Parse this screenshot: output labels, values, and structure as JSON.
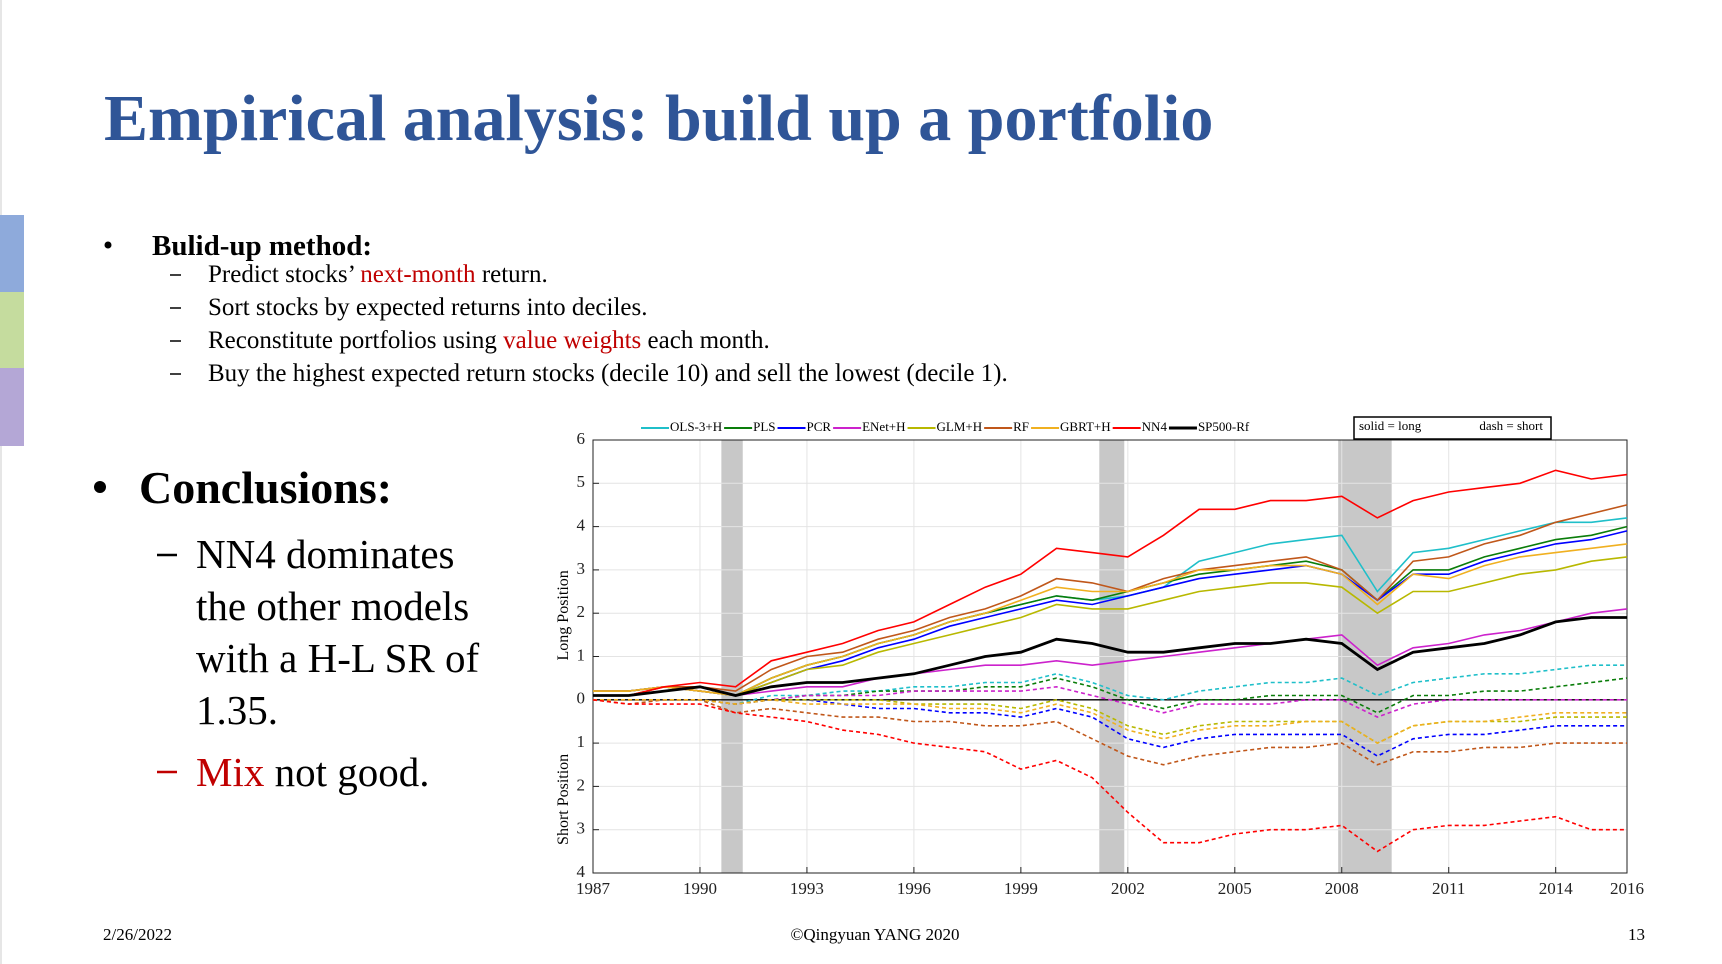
{
  "slide": {
    "title": "Empirical analysis: build up a portfolio",
    "method": {
      "heading": "Bulid-up method:",
      "items": [
        [
          {
            "text": "Predict stocks’ "
          },
          {
            "text": "next-month",
            "color": "#c00000"
          },
          {
            "text": " return."
          }
        ],
        [
          {
            "text": "Sort stocks by expected returns into deciles."
          }
        ],
        [
          {
            "text": "Reconstitute portfolios using "
          },
          {
            "text": "value weights",
            "color": "#c00000"
          },
          {
            "text": " each month."
          }
        ],
        [
          {
            "text": "Buy the highest expected return stocks (decile 10) and sell the lowest (decile 1)."
          }
        ]
      ]
    },
    "conclusions": {
      "heading": "Conclusions:",
      "lines": [
        "NN4 dominates",
        "the other models",
        "with a H-L SR of",
        "1.35."
      ],
      "mix": [
        {
          "text": "Mix",
          "color": "#c00000"
        },
        {
          "text": " not good."
        }
      ]
    },
    "footer": {
      "date": "2/26/2022",
      "credit": "©Qingyuan YANG 2020",
      "page": "13"
    }
  },
  "chart_data": {
    "type": "line",
    "ylabel_long": "Long Position",
    "ylabel_short": "Short Position",
    "legend_note": [
      "solid = long",
      "dash = short"
    ],
    "x": [
      1987,
      1988,
      1989,
      1990,
      1991,
      1992,
      1993,
      1994,
      1995,
      1996,
      1997,
      1998,
      1999,
      2000,
      2001,
      2002,
      2003,
      2004,
      2005,
      2006,
      2007,
      2008,
      2009,
      2010,
      2011,
      2012,
      2013,
      2014,
      2015,
      2016
    ],
    "xlim": [
      1987,
      2016
    ],
    "xticks": [
      1987,
      1990,
      1993,
      1996,
      1999,
      2002,
      2005,
      2008,
      2011,
      2014,
      2016
    ],
    "ylim": [
      -4,
      6
    ],
    "yticks": [
      {
        "value": -4,
        "label": "4"
      },
      {
        "value": -3,
        "label": "3"
      },
      {
        "value": -2,
        "label": "2"
      },
      {
        "value": -1,
        "label": "1"
      },
      0,
      1,
      2,
      3,
      4,
      5,
      6
    ],
    "grid": true,
    "shaded_periods": [
      [
        1990.6,
        1991.2
      ],
      [
        2001.2,
        2001.9
      ],
      [
        2007.9,
        2009.4
      ]
    ],
    "series": [
      {
        "name": "OLS-3+H",
        "color": "#1fbfc9",
        "long": [
          0.2,
          0.2,
          0.3,
          0.2,
          0.1,
          0.5,
          0.8,
          1.0,
          1.3,
          1.5,
          1.8,
          2.0,
          2.2,
          2.4,
          2.3,
          2.4,
          2.6,
          3.2,
          3.4,
          3.6,
          3.7,
          3.8,
          2.5,
          3.4,
          3.5,
          3.7,
          3.9,
          4.1,
          4.1,
          4.2
        ],
        "short": [
          0,
          0,
          0,
          0,
          -0.1,
          0.1,
          0.1,
          0.2,
          0.2,
          0.3,
          0.3,
          0.4,
          0.4,
          0.6,
          0.4,
          0.1,
          0,
          0.2,
          0.3,
          0.4,
          0.4,
          0.5,
          0.1,
          0.4,
          0.5,
          0.6,
          0.6,
          0.7,
          0.8,
          0.8
        ]
      },
      {
        "name": "PLS",
        "color": "#0a7d0a",
        "long": [
          0.2,
          0.2,
          0.3,
          0.2,
          0.1,
          0.5,
          0.8,
          1.0,
          1.3,
          1.5,
          1.8,
          2.0,
          2.2,
          2.4,
          2.3,
          2.5,
          2.7,
          2.9,
          3.0,
          3.1,
          3.2,
          3.0,
          2.3,
          3.0,
          3.0,
          3.3,
          3.5,
          3.7,
          3.8,
          4.0
        ],
        "short": [
          0,
          0,
          0,
          0,
          -0.1,
          0,
          0.1,
          0.1,
          0.2,
          0.2,
          0.2,
          0.3,
          0.3,
          0.5,
          0.3,
          0,
          -0.2,
          0,
          0,
          0.1,
          0.1,
          0.1,
          -0.3,
          0.1,
          0.1,
          0.2,
          0.2,
          0.3,
          0.4,
          0.5
        ]
      },
      {
        "name": "PCR",
        "color": "#0000ff",
        "long": [
          0.2,
          0.2,
          0.3,
          0.2,
          0.1,
          0.4,
          0.7,
          0.9,
          1.2,
          1.4,
          1.7,
          1.9,
          2.1,
          2.3,
          2.2,
          2.4,
          2.6,
          2.8,
          2.9,
          3.0,
          3.1,
          2.9,
          2.3,
          2.9,
          2.9,
          3.2,
          3.4,
          3.6,
          3.7,
          3.9
        ],
        "short": [
          0,
          0,
          0,
          0,
          -0.1,
          0,
          0,
          -0.1,
          -0.2,
          -0.2,
          -0.3,
          -0.3,
          -0.4,
          -0.2,
          -0.4,
          -0.9,
          -1.1,
          -0.9,
          -0.8,
          -0.8,
          -0.8,
          -0.8,
          -1.3,
          -0.9,
          -0.8,
          -0.8,
          -0.7,
          -0.6,
          -0.6,
          -0.6
        ]
      },
      {
        "name": "ENet+H",
        "color": "#cc22cc",
        "long": [
          0.2,
          0.2,
          0.3,
          0.2,
          0.1,
          0.2,
          0.3,
          0.3,
          0.5,
          0.6,
          0.7,
          0.8,
          0.8,
          0.9,
          0.8,
          0.9,
          1.0,
          1.1,
          1.2,
          1.3,
          1.4,
          1.5,
          0.8,
          1.2,
          1.3,
          1.5,
          1.6,
          1.8,
          2.0,
          2.1
        ],
        "short": [
          0,
          0,
          0,
          0,
          -0.1,
          0,
          0.1,
          0.1,
          0.1,
          0.2,
          0.2,
          0.2,
          0.2,
          0.3,
          0.1,
          -0.1,
          -0.3,
          -0.1,
          -0.1,
          -0.1,
          0,
          0,
          -0.4,
          -0.1,
          0,
          0,
          0,
          0,
          0,
          0
        ]
      },
      {
        "name": "GLM+H",
        "color": "#b8b800",
        "long": [
          0.2,
          0.2,
          0.3,
          0.2,
          0.1,
          0.4,
          0.7,
          0.8,
          1.1,
          1.3,
          1.5,
          1.7,
          1.9,
          2.2,
          2.1,
          2.1,
          2.3,
          2.5,
          2.6,
          2.7,
          2.7,
          2.6,
          2.0,
          2.5,
          2.5,
          2.7,
          2.9,
          3.0,
          3.2,
          3.3
        ],
        "short": [
          0,
          0,
          0,
          0,
          -0.1,
          0,
          0,
          0,
          0,
          -0.1,
          -0.1,
          -0.1,
          -0.2,
          0,
          -0.2,
          -0.6,
          -0.8,
          -0.6,
          -0.5,
          -0.5,
          -0.5,
          -0.5,
          -1.0,
          -0.6,
          -0.5,
          -0.5,
          -0.5,
          -0.4,
          -0.4,
          -0.4
        ]
      },
      {
        "name": "RF",
        "color": "#c0571a",
        "long": [
          0.1,
          0.1,
          0.3,
          0.3,
          0.2,
          0.7,
          1.0,
          1.1,
          1.4,
          1.6,
          1.9,
          2.1,
          2.4,
          2.8,
          2.7,
          2.5,
          2.8,
          3.0,
          3.1,
          3.2,
          3.3,
          3.0,
          2.3,
          3.2,
          3.3,
          3.6,
          3.8,
          4.1,
          4.3,
          4.5
        ],
        "short": [
          0,
          -0.1,
          0,
          0,
          -0.3,
          -0.2,
          -0.3,
          -0.4,
          -0.4,
          -0.5,
          -0.5,
          -0.6,
          -0.6,
          -0.5,
          -0.9,
          -1.3,
          -1.5,
          -1.3,
          -1.2,
          -1.1,
          -1.1,
          -1.0,
          -1.5,
          -1.2,
          -1.2,
          -1.1,
          -1.1,
          -1.0,
          -1.0,
          -1.0
        ]
      },
      {
        "name": "GBRT+H",
        "color": "#f0b020",
        "long": [
          0.2,
          0.2,
          0.3,
          0.2,
          0.1,
          0.5,
          0.8,
          1.0,
          1.3,
          1.5,
          1.8,
          2.0,
          2.3,
          2.6,
          2.5,
          2.5,
          2.7,
          3.0,
          3.0,
          3.1,
          3.1,
          2.9,
          2.2,
          2.9,
          2.8,
          3.1,
          3.3,
          3.4,
          3.5,
          3.6
        ],
        "short": [
          0,
          0,
          0,
          0,
          -0.1,
          0,
          -0.1,
          -0.1,
          -0.1,
          -0.1,
          -0.2,
          -0.2,
          -0.3,
          -0.1,
          -0.3,
          -0.7,
          -0.9,
          -0.7,
          -0.6,
          -0.6,
          -0.5,
          -0.5,
          -1.0,
          -0.6,
          -0.5,
          -0.5,
          -0.4,
          -0.3,
          -0.3,
          -0.3
        ]
      },
      {
        "name": "NN4",
        "color": "#ff0000",
        "long": [
          0.1,
          0.1,
          0.3,
          0.4,
          0.3,
          0.9,
          1.1,
          1.3,
          1.6,
          1.8,
          2.2,
          2.6,
          2.9,
          3.5,
          3.4,
          3.3,
          3.8,
          4.4,
          4.4,
          4.6,
          4.6,
          4.7,
          4.2,
          4.6,
          4.8,
          4.9,
          5.0,
          5.3,
          5.1,
          5.2
        ],
        "short": [
          0,
          -0.1,
          -0.1,
          -0.1,
          -0.3,
          -0.4,
          -0.5,
          -0.7,
          -0.8,
          -1.0,
          -1.1,
          -1.2,
          -1.6,
          -1.4,
          -1.8,
          -2.6,
          -3.3,
          -3.3,
          -3.1,
          -3.0,
          -3.0,
          -2.9,
          -3.5,
          -3.0,
          -2.9,
          -2.9,
          -2.8,
          -2.7,
          -3.0,
          -3.0
        ]
      },
      {
        "name": "SP500-Rf",
        "color": "#000000",
        "long": [
          0.1,
          0.1,
          0.2,
          0.3,
          0.1,
          0.3,
          0.4,
          0.4,
          0.5,
          0.6,
          0.8,
          1.0,
          1.1,
          1.4,
          1.3,
          1.1,
          1.1,
          1.2,
          1.3,
          1.3,
          1.4,
          1.3,
          0.7,
          1.1,
          1.2,
          1.3,
          1.5,
          1.8,
          1.9,
          1.9
        ]
      }
    ]
  }
}
